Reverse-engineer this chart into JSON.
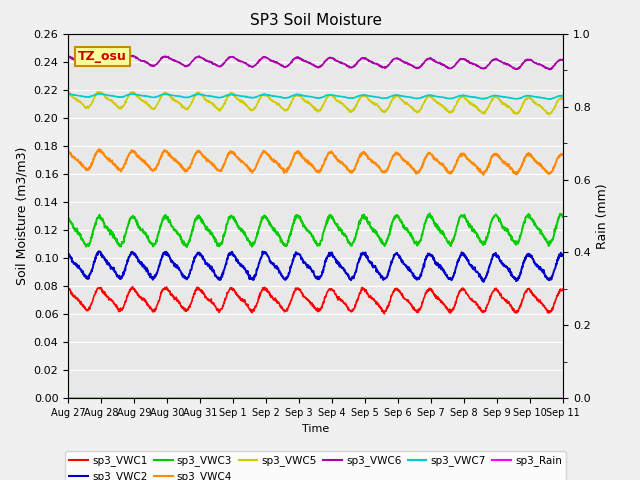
{
  "title": "SP3 Soil Moisture",
  "xlabel": "Time",
  "ylabel_left": "Soil Moisture (m3/m3)",
  "ylabel_right": "Rain (mm)",
  "ylim_left": [
    0.0,
    0.26
  ],
  "ylim_right": [
    0.0,
    1.0
  ],
  "background_color": "#e8e8e8",
  "fig_facecolor": "#f0f0f0",
  "annotation_text": "TZ_osu",
  "annotation_bg": "#ffff99",
  "annotation_border": "#cc8800",
  "series_names": [
    "sp3_VWC1",
    "sp3_VWC2",
    "sp3_VWC3",
    "sp3_VWC4",
    "sp3_VWC5",
    "sp3_VWC6",
    "sp3_VWC7",
    "sp3_Rain"
  ],
  "series_colors": [
    "#ff0000",
    "#0000cc",
    "#00cc00",
    "#ff8800",
    "#cccc00",
    "#aa00aa",
    "#00cccc",
    "#ff00ff"
  ],
  "series_base": [
    0.071,
    0.095,
    0.119,
    0.17,
    0.213,
    0.241,
    0.216,
    0.0
  ],
  "series_amp": [
    0.007,
    0.008,
    0.009,
    0.006,
    0.005,
    0.003,
    0.001,
    0.0
  ],
  "series_period": [
    1.0,
    1.0,
    1.0,
    1.0,
    1.0,
    1.0,
    1.0,
    1.0
  ],
  "series_phase": [
    1.5,
    1.5,
    1.5,
    1.5,
    1.5,
    1.5,
    1.5,
    0.0
  ],
  "series_trend": [
    -0.0001,
    -0.0001,
    0.0001,
    -0.0002,
    -0.0003,
    -0.0002,
    -0.0001,
    0.0
  ],
  "series_lw": [
    1.2,
    1.4,
    1.4,
    1.4,
    1.2,
    1.2,
    1.2,
    1.2
  ],
  "xtick_positions": [
    0,
    1,
    2,
    3,
    4,
    5,
    6,
    7,
    8,
    9,
    10,
    11,
    12,
    13,
    14,
    15
  ],
  "xtick_labels": [
    "Aug 27",
    "Aug 28",
    "Aug 29",
    "Aug 30",
    "Aug 31",
    "Sep 1",
    "Sep 2",
    "Sep 3",
    "Sep 4",
    "Sep 5",
    "Sep 6",
    "Sep 7",
    "Sep 8",
    "Sep 9",
    "Sep 10",
    "Sep 11"
  ],
  "yticks_left": [
    0.0,
    0.02,
    0.04,
    0.06,
    0.08,
    0.1,
    0.12,
    0.14,
    0.16,
    0.18,
    0.2,
    0.22,
    0.24,
    0.26
  ],
  "yticks_right_vals": [
    0.0,
    0.2,
    0.4,
    0.6,
    0.8,
    1.0
  ],
  "yticks_right_labels": [
    "0.0",
    "0.2",
    "0.4",
    "0.6",
    "0.8",
    "1.0"
  ],
  "yticks_right_minor": [
    0.1,
    0.3,
    0.5,
    0.7,
    0.9
  ]
}
